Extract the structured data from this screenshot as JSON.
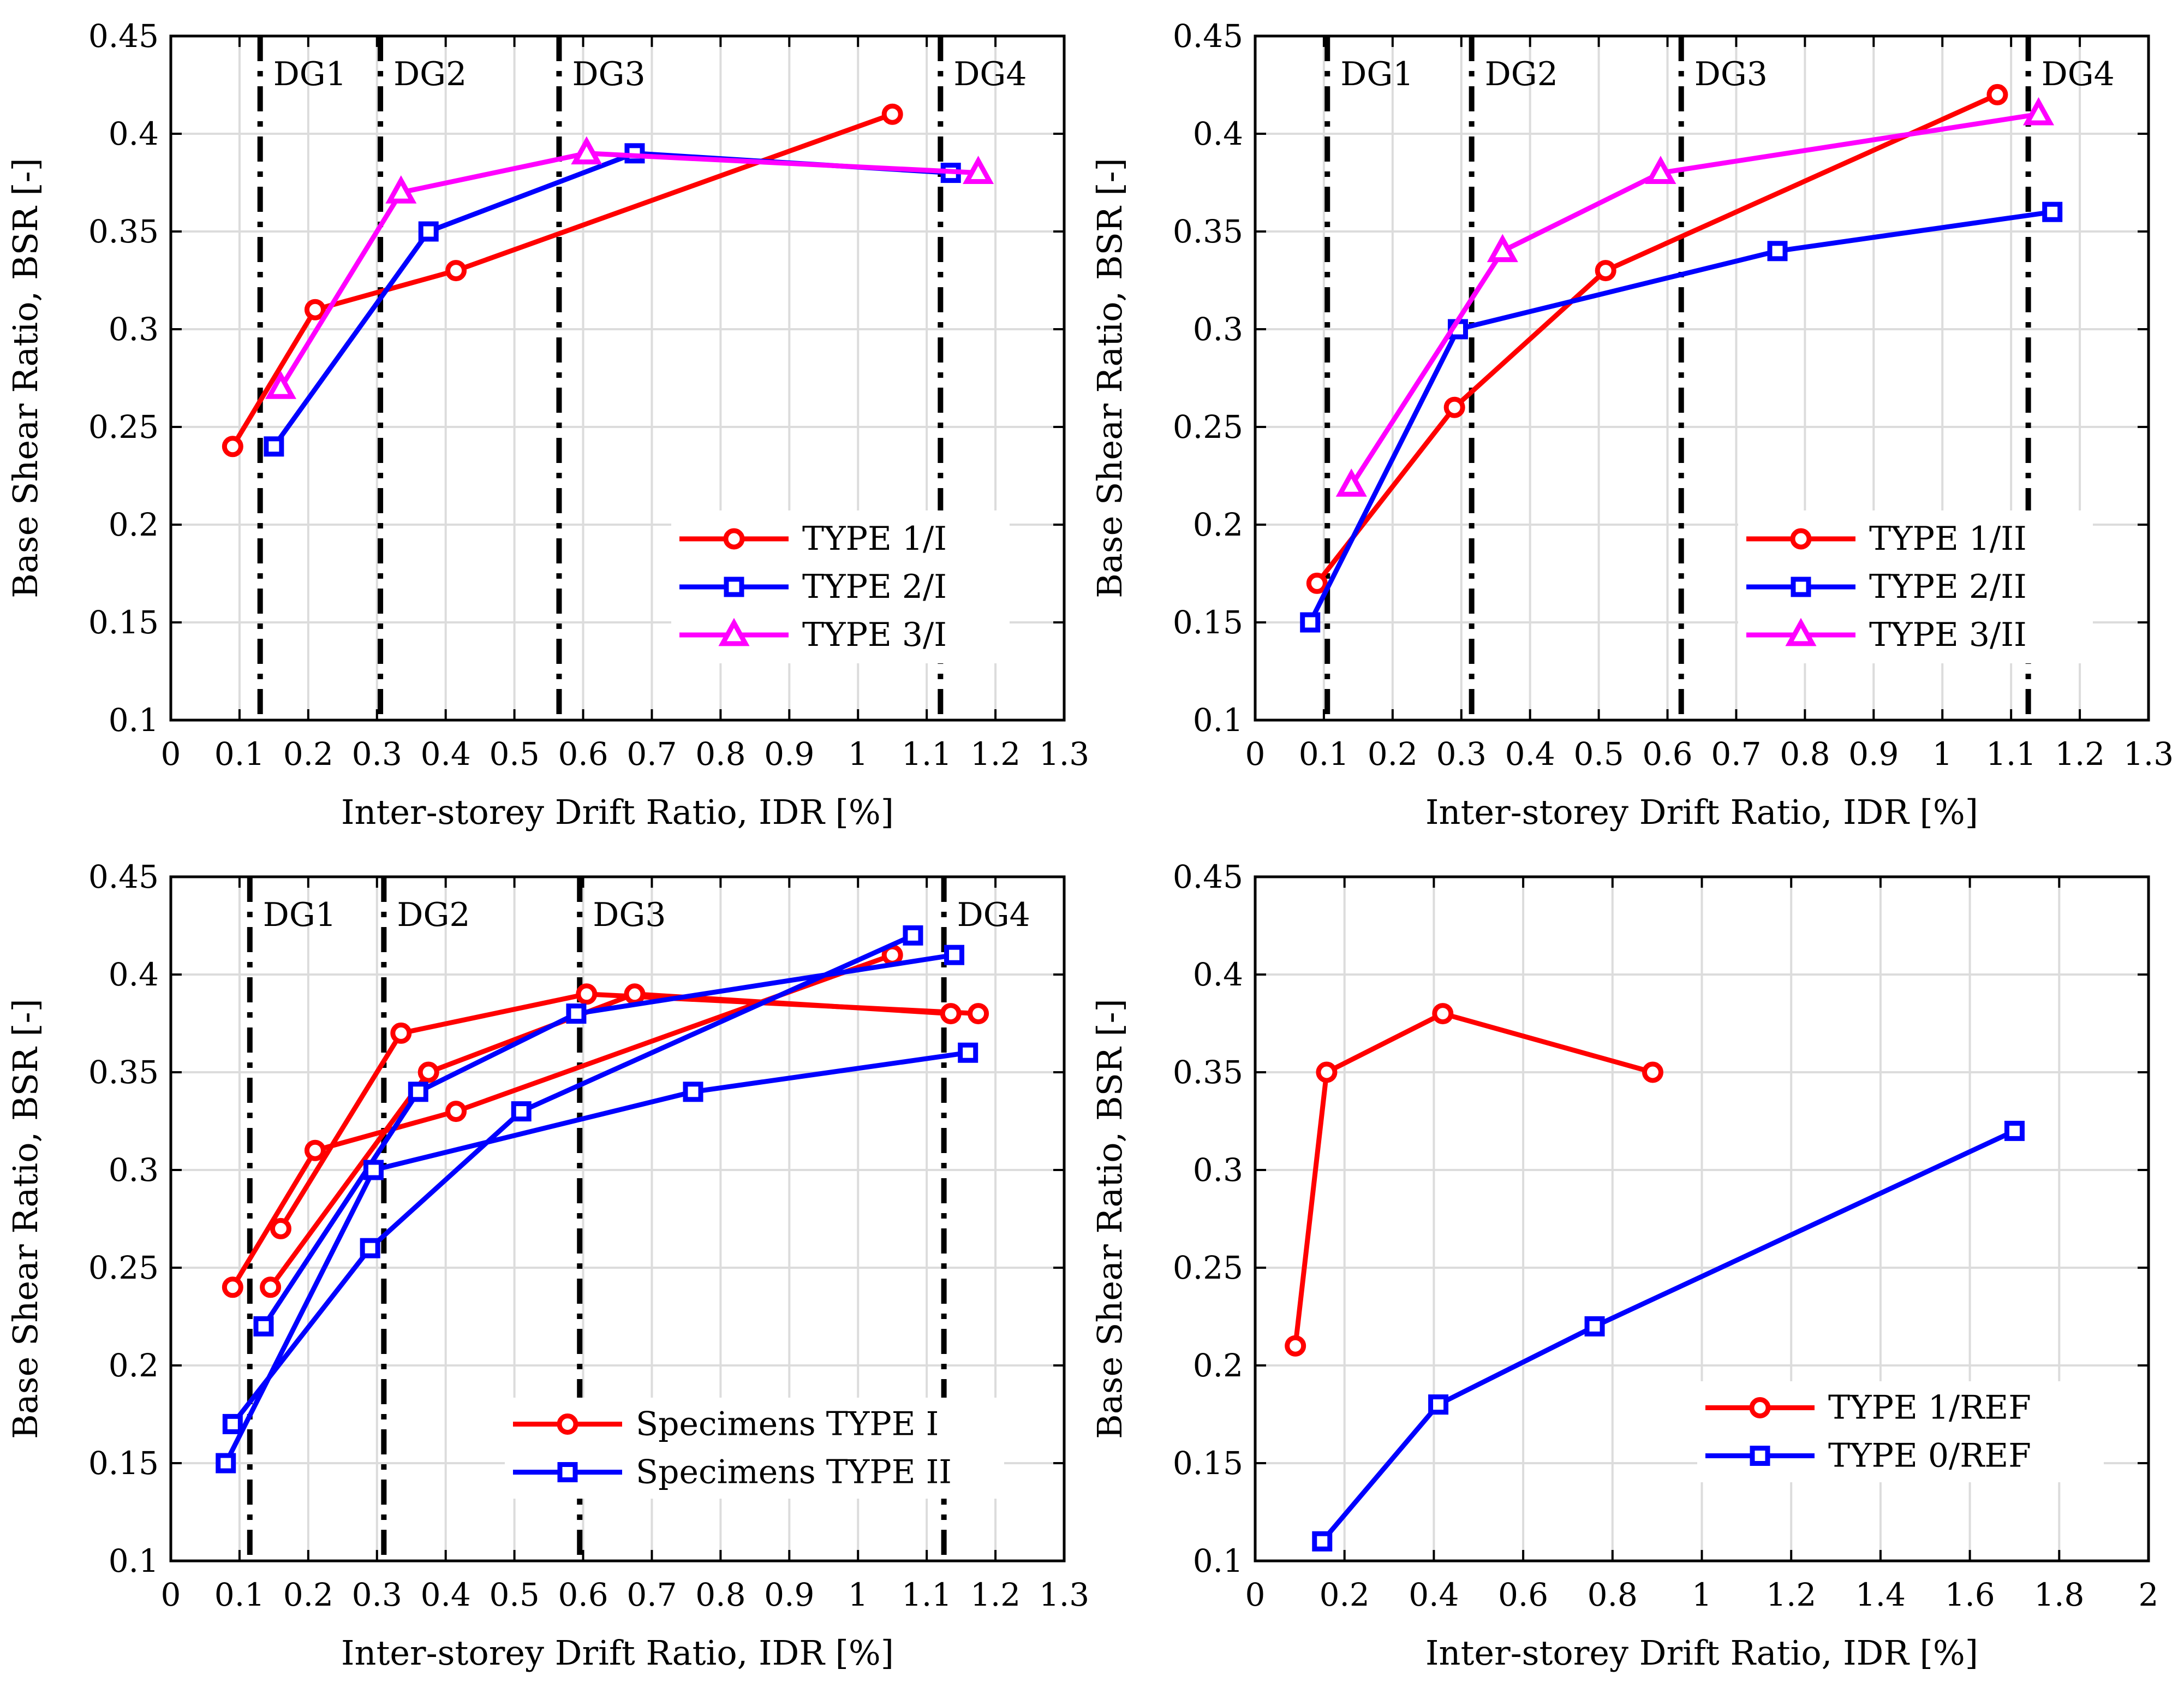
{
  "colors": {
    "red": "#ff0000",
    "blue": "#0000ff",
    "magenta": "#ff00ff",
    "grid": "#dcdcdc",
    "axis": "#000000"
  },
  "chart_data": [
    {
      "type": "line",
      "panel": "top-left",
      "xlabel": "Inter-storey Drift Ratio, IDR [%]",
      "ylabel": "Base Shear Ratio, BSR [-]",
      "xlim": [
        0,
        1.3
      ],
      "ylim": [
        0.1,
        0.45
      ],
      "xticks": [
        0,
        0.1,
        0.2,
        0.3,
        0.4,
        0.5,
        0.6,
        0.7,
        0.8,
        0.9,
        1,
        1.1,
        1.2,
        1.3
      ],
      "yticks": [
        0.1,
        0.15,
        0.2,
        0.25,
        0.3,
        0.35,
        0.4,
        0.45
      ],
      "xtick_labels": [
        "0",
        "0.1",
        "0.2",
        "0.3",
        "0.4",
        "0.5",
        "0.6",
        "0.7",
        "0.8",
        "0.9",
        "1",
        "1.1",
        "1.2",
        "1.3"
      ],
      "ytick_labels": [
        "0.1",
        "0.15",
        "0.2",
        "0.25",
        "0.3",
        "0.35",
        "0.4",
        "0.45"
      ],
      "grid": true,
      "legend_position": "bottom-right",
      "damage_grade_lines": [
        {
          "x": 0.13,
          "label": "DG1"
        },
        {
          "x": 0.305,
          "label": "DG2"
        },
        {
          "x": 0.565,
          "label": "DG3"
        },
        {
          "x": 1.12,
          "label": "DG4"
        }
      ],
      "series": [
        {
          "name": "TYPE 1/I",
          "color": "red",
          "marker": "circle",
          "x": [
            0.09,
            0.21,
            0.415,
            1.05
          ],
          "y": [
            0.24,
            0.31,
            0.33,
            0.41
          ]
        },
        {
          "name": "TYPE 2/I",
          "color": "blue",
          "marker": "square",
          "x": [
            0.15,
            0.375,
            0.675,
            1.135
          ],
          "y": [
            0.24,
            0.35,
            0.39,
            0.38
          ]
        },
        {
          "name": "TYPE 3/I",
          "color": "magenta",
          "marker": "triangle",
          "x": [
            0.16,
            0.335,
            0.605,
            1.175
          ],
          "y": [
            0.27,
            0.37,
            0.39,
            0.38
          ]
        }
      ]
    },
    {
      "type": "line",
      "panel": "top-right",
      "xlabel": "Inter-storey Drift Ratio, IDR [%]",
      "ylabel": "Base Shear Ratio, BSR [-]",
      "xlim": [
        0,
        1.3
      ],
      "ylim": [
        0.1,
        0.45
      ],
      "xticks": [
        0,
        0.1,
        0.2,
        0.3,
        0.4,
        0.5,
        0.6,
        0.7,
        0.8,
        0.9,
        1,
        1.1,
        1.2,
        1.3
      ],
      "yticks": [
        0.1,
        0.15,
        0.2,
        0.25,
        0.3,
        0.35,
        0.4,
        0.45
      ],
      "xtick_labels": [
        "0",
        "0.1",
        "0.2",
        "0.3",
        "0.4",
        "0.5",
        "0.6",
        "0.7",
        "0.8",
        "0.9",
        "1",
        "1.1",
        "1.2",
        "1.3"
      ],
      "ytick_labels": [
        "0.1",
        "0.15",
        "0.2",
        "0.25",
        "0.3",
        "0.35",
        "0.4",
        "0.45"
      ],
      "grid": true,
      "legend_position": "bottom-right",
      "damage_grade_lines": [
        {
          "x": 0.105,
          "label": "DG1"
        },
        {
          "x": 0.315,
          "label": "DG2"
        },
        {
          "x": 0.62,
          "label": "DG3"
        },
        {
          "x": 1.125,
          "label": "DG4"
        }
      ],
      "series": [
        {
          "name": "TYPE 1/II",
          "color": "red",
          "marker": "circle",
          "x": [
            0.09,
            0.29,
            0.51,
            1.08
          ],
          "y": [
            0.17,
            0.26,
            0.33,
            0.42
          ]
        },
        {
          "name": "TYPE 2/II",
          "color": "blue",
          "marker": "square",
          "x": [
            0.08,
            0.295,
            0.76,
            1.16
          ],
          "y": [
            0.15,
            0.3,
            0.34,
            0.36
          ]
        },
        {
          "name": "TYPE 3/II",
          "color": "magenta",
          "marker": "triangle",
          "x": [
            0.14,
            0.36,
            0.59,
            1.14
          ],
          "y": [
            0.22,
            0.34,
            0.38,
            0.41
          ]
        }
      ]
    },
    {
      "type": "line",
      "panel": "bottom-left",
      "xlabel": "Inter-storey Drift Ratio, IDR [%]",
      "ylabel": "Base Shear Ratio, BSR [-]",
      "xlim": [
        0,
        1.3
      ],
      "ylim": [
        0.1,
        0.45
      ],
      "xticks": [
        0,
        0.1,
        0.2,
        0.3,
        0.4,
        0.5,
        0.6,
        0.7,
        0.8,
        0.9,
        1,
        1.1,
        1.2,
        1.3
      ],
      "yticks": [
        0.1,
        0.15,
        0.2,
        0.25,
        0.3,
        0.35,
        0.4,
        0.45
      ],
      "xtick_labels": [
        "0",
        "0.1",
        "0.2",
        "0.3",
        "0.4",
        "0.5",
        "0.6",
        "0.7",
        "0.8",
        "0.9",
        "1",
        "1.1",
        "1.2",
        "1.3"
      ],
      "ytick_labels": [
        "0.1",
        "0.15",
        "0.2",
        "0.25",
        "0.3",
        "0.35",
        "0.4",
        "0.45"
      ],
      "grid": true,
      "legend_position": "bottom-right",
      "damage_grade_lines": [
        {
          "x": 0.115,
          "label": "DG1"
        },
        {
          "x": 0.31,
          "label": "DG2"
        },
        {
          "x": 0.595,
          "label": "DG3"
        },
        {
          "x": 1.125,
          "label": "DG4"
        }
      ],
      "series": [
        {
          "name": "Specimens TYPE I",
          "color": "red",
          "marker": "circle",
          "lines": [
            {
              "x": [
                0.09,
                0.21,
                0.415,
                1.05
              ],
              "y": [
                0.24,
                0.31,
                0.33,
                0.41
              ]
            },
            {
              "x": [
                0.145,
                0.375,
                0.675,
                1.135
              ],
              "y": [
                0.24,
                0.35,
                0.39,
                0.38
              ]
            },
            {
              "x": [
                0.16,
                0.335,
                0.605,
                1.175
              ],
              "y": [
                0.27,
                0.37,
                0.39,
                0.38
              ]
            }
          ]
        },
        {
          "name": "Specimens TYPE II",
          "color": "blue",
          "marker": "square",
          "lines": [
            {
              "x": [
                0.09,
                0.29,
                0.51,
                1.08
              ],
              "y": [
                0.17,
                0.26,
                0.33,
                0.42
              ]
            },
            {
              "x": [
                0.08,
                0.295,
                0.76,
                1.16
              ],
              "y": [
                0.15,
                0.3,
                0.34,
                0.36
              ]
            },
            {
              "x": [
                0.135,
                0.36,
                0.59,
                1.14
              ],
              "y": [
                0.22,
                0.34,
                0.38,
                0.41
              ]
            }
          ]
        }
      ]
    },
    {
      "type": "line",
      "panel": "bottom-right",
      "xlabel": "Inter-storey Drift Ratio, IDR [%]",
      "ylabel": "Base Shear Ratio, BSR [-]",
      "xlim": [
        0,
        2
      ],
      "ylim": [
        0.1,
        0.45
      ],
      "xticks": [
        0,
        0.2,
        0.4,
        0.6,
        0.8,
        1,
        1.2,
        1.4,
        1.6,
        1.8,
        2
      ],
      "yticks": [
        0.1,
        0.15,
        0.2,
        0.25,
        0.3,
        0.35,
        0.4,
        0.45
      ],
      "xtick_labels": [
        "0",
        "0.2",
        "0.4",
        "0.6",
        "0.8",
        "1",
        "1.2",
        "1.4",
        "1.6",
        "1.8",
        "2"
      ],
      "ytick_labels": [
        "0.1",
        "0.15",
        "0.2",
        "0.25",
        "0.3",
        "0.35",
        "0.4",
        "0.45"
      ],
      "grid": true,
      "legend_position": "bottom-right",
      "damage_grade_lines": [],
      "series": [
        {
          "name": "TYPE 1/REF",
          "color": "red",
          "marker": "circle",
          "x": [
            0.09,
            0.16,
            0.42,
            0.89
          ],
          "y": [
            0.21,
            0.35,
            0.38,
            0.35
          ]
        },
        {
          "name": "TYPE 0/REF",
          "color": "blue",
          "marker": "square",
          "x": [
            0.15,
            0.41,
            0.76,
            1.7
          ],
          "y": [
            0.11,
            0.18,
            0.22,
            0.32
          ]
        }
      ]
    }
  ]
}
